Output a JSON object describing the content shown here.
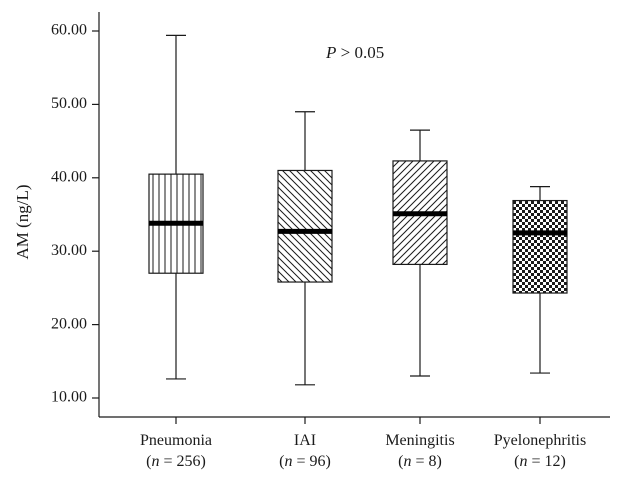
{
  "chart_data": {
    "type": "box",
    "title": "",
    "xlabel": "",
    "ylabel": "AM (ng/L)",
    "ylim": [
      7,
      63
    ],
    "yticks": [
      "10.00",
      "20.00",
      "30.00",
      "40.00",
      "50.00",
      "60.00"
    ],
    "ytick_values": [
      10,
      20,
      30,
      40,
      50,
      60
    ],
    "annotation": {
      "prefix": "P",
      "text": " > 0.05"
    },
    "grid": false,
    "categories": [
      {
        "name": "Pneumonia",
        "n_var": "n",
        "n_text": " = 256",
        "pattern": "vertical-lines",
        "min": 12.6,
        "q1": 27.0,
        "median": 33.8,
        "q3": 40.5,
        "max": 59.4
      },
      {
        "name": "IAI",
        "n_var": "n",
        "n_text": " = 96",
        "pattern": "backslash-diagonal",
        "min": 11.8,
        "q1": 25.8,
        "median": 32.7,
        "q3": 41.0,
        "max": 49.0
      },
      {
        "name": "Meningitis",
        "n_var": "n",
        "n_text": " = 8",
        "pattern": "forward-diagonal",
        "min": 13.0,
        "q1": 28.2,
        "median": 35.1,
        "q3": 42.3,
        "max": 46.5
      },
      {
        "name": "Pyelonephritis",
        "n_var": "n",
        "n_text": " = 12",
        "pattern": "checkerboard",
        "min": 13.4,
        "q1": 24.3,
        "median": 32.5,
        "q3": 36.9,
        "max": 38.8
      }
    ]
  }
}
